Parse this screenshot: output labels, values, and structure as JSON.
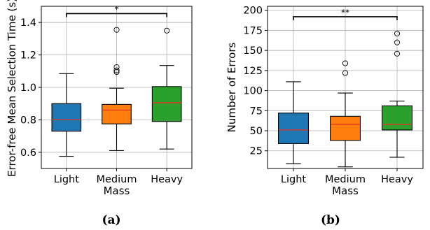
{
  "chart_data": [
    {
      "type": "box",
      "panel": "a",
      "caption": "(a)",
      "xlabel": "Mass",
      "ylabel": "Error-free Mean Selection Time (s)",
      "categories": [
        "Light",
        "Medium",
        "Heavy"
      ],
      "colors": [
        "#1f77b4",
        "#ff7f0e",
        "#2ca02c"
      ],
      "median_color": "#e8321e",
      "ylim": [
        0.5,
        1.5
      ],
      "yticks": [
        0.6,
        0.8,
        1.0,
        1.2,
        1.4
      ],
      "ytick_labels": [
        "0.6",
        "0.8",
        "1.0",
        "1.2",
        "1.4"
      ],
      "grid": true,
      "boxes": [
        {
          "category": "Light",
          "whisker_low": 0.575,
          "q1": 0.73,
          "median": 0.8,
          "q3": 0.9,
          "whisker_high": 1.085,
          "outliers": []
        },
        {
          "category": "Medium",
          "whisker_low": 0.61,
          "q1": 0.775,
          "median": 0.86,
          "q3": 0.895,
          "whisker_high": 0.995,
          "outliers": [
            1.095,
            1.105,
            1.125,
            1.355
          ]
        },
        {
          "category": "Heavy",
          "whisker_low": 0.62,
          "q1": 0.79,
          "median": 0.905,
          "q3": 1.005,
          "whisker_high": 1.135,
          "outliers": [
            1.35
          ]
        }
      ],
      "significance": {
        "from": "Light",
        "to": "Heavy",
        "label": "*",
        "y": 1.455
      }
    },
    {
      "type": "box",
      "panel": "b",
      "caption": "(b)",
      "xlabel": "Mass",
      "ylabel": "Number of Errors",
      "categories": [
        "Light",
        "Medium",
        "Heavy"
      ],
      "colors": [
        "#1f77b4",
        "#ff7f0e",
        "#2ca02c"
      ],
      "median_color": "#e8321e",
      "ylim": [
        3,
        205
      ],
      "yticks": [
        25,
        50,
        75,
        100,
        125,
        150,
        175,
        200
      ],
      "ytick_labels": [
        "25",
        "50",
        "75",
        "100",
        "125",
        "150",
        "175",
        "200"
      ],
      "grid": true,
      "boxes": [
        {
          "category": "Light",
          "whisker_low": 9,
          "q1": 34,
          "median": 51,
          "q3": 72,
          "whisker_high": 111,
          "outliers": []
        },
        {
          "category": "Medium",
          "whisker_low": 5,
          "q1": 38,
          "median": 58,
          "q3": 68,
          "whisker_high": 97,
          "outliers": [
            122,
            134
          ]
        },
        {
          "category": "Heavy",
          "whisker_low": 17,
          "q1": 51,
          "median": 58,
          "q3": 81,
          "whisker_high": 87,
          "outliers": [
            146,
            160,
            171
          ]
        }
      ],
      "significance": {
        "from": "Light",
        "to": "Heavy",
        "label": "**",
        "y": 192
      }
    }
  ]
}
